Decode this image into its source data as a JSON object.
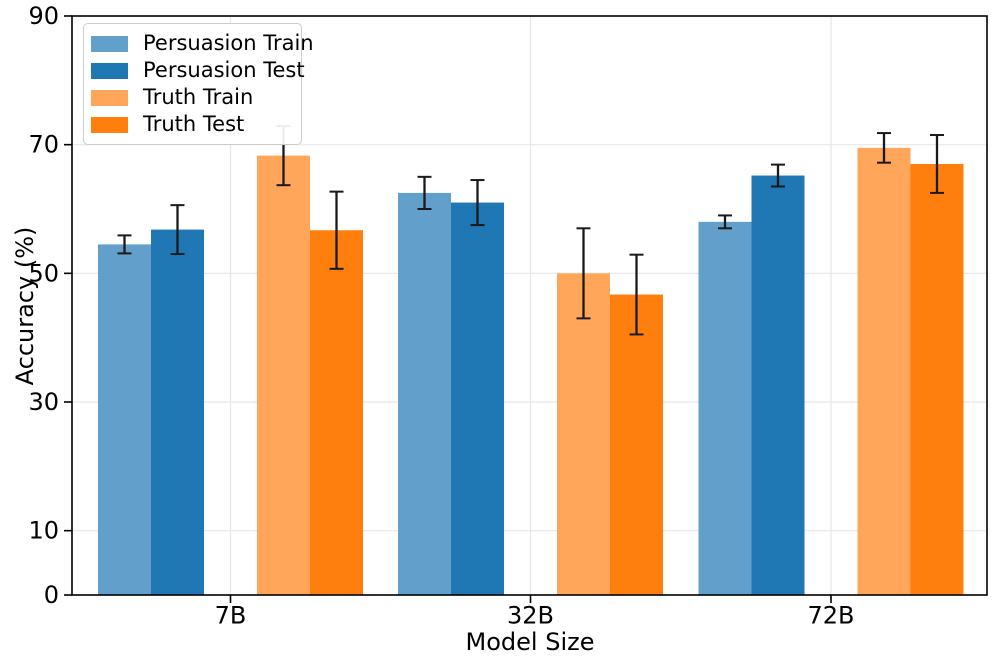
{
  "chart_data": {
    "type": "bar",
    "title": "",
    "xlabel": "Model Size",
    "ylabel": "Accuracy (%)",
    "categories": [
      "7B",
      "32B",
      "72B"
    ],
    "series": [
      {
        "name": "Persuasion Train",
        "color": "#62A0CB",
        "values": [
          54.5,
          62.5,
          58.0
        ],
        "errors": [
          1.4,
          2.5,
          1.0
        ]
      },
      {
        "name": "Persuasion Test",
        "color": "#1F77B4",
        "values": [
          56.8,
          61.0,
          65.2
        ],
        "errors": [
          3.8,
          3.5,
          1.7
        ]
      },
      {
        "name": "Truth Train",
        "color": "#FFA65A",
        "values": [
          68.3,
          50.0,
          69.5
        ],
        "errors": [
          4.6,
          7.0,
          2.3
        ]
      },
      {
        "name": "Truth Test",
        "color": "#FF7F0E",
        "values": [
          56.7,
          46.7,
          67.0
        ],
        "errors": [
          6.0,
          6.2,
          4.5
        ]
      }
    ],
    "ylim": [
      0,
      90
    ],
    "yticks": [
      0,
      10,
      30,
      50,
      70,
      90
    ],
    "grid": true,
    "legend_position": "upper left",
    "background_color": "#ffffff",
    "grid_color": "#e7e7e7",
    "axis_color": "#000000",
    "error_color": "#1a1a1a"
  }
}
